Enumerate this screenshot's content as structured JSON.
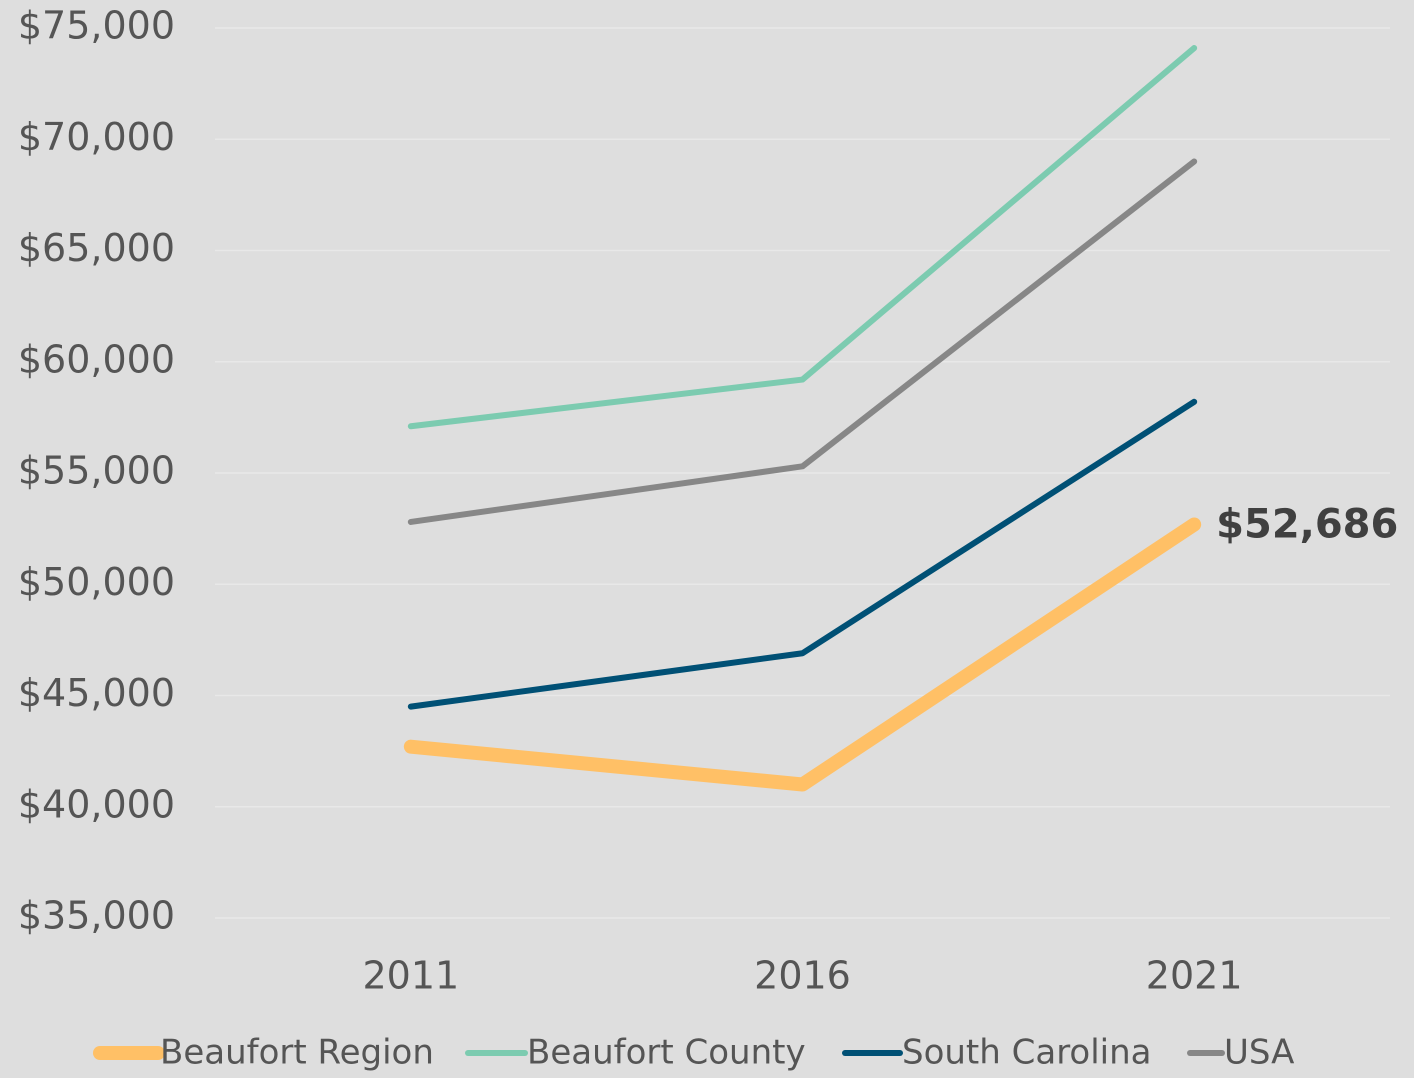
{
  "chart_data": {
    "type": "line",
    "categories": [
      "2011",
      "2016",
      "2021"
    ],
    "series": [
      {
        "name": "Beaufort Region",
        "color": "#ffc066",
        "values": [
          42700,
          41000,
          52686
        ],
        "value_labels": [
          null,
          null,
          "$52,686"
        ]
      },
      {
        "name": "Beaufort County",
        "color": "#7ccbb0",
        "values": [
          57100,
          59200,
          74100
        ]
      },
      {
        "name": "South Carolina",
        "color": "#005075",
        "values": [
          44500,
          46900,
          58200
        ]
      },
      {
        "name": "USA",
        "color": "#878787",
        "values": [
          52800,
          55300,
          69000
        ]
      }
    ],
    "ylim": [
      35000,
      75000
    ],
    "yticks": [
      {
        "value": 35000,
        "label": "$35,000"
      },
      {
        "value": 40000,
        "label": "$40,000"
      },
      {
        "value": 45000,
        "label": "$45,000"
      },
      {
        "value": 50000,
        "label": "$50,000"
      },
      {
        "value": 55000,
        "label": "$55,000"
      },
      {
        "value": 60000,
        "label": "$60,000"
      },
      {
        "value": 65000,
        "label": "$65,000"
      },
      {
        "value": 70000,
        "label": "$70,000"
      },
      {
        "value": 75000,
        "label": "$75,000"
      }
    ],
    "grid": true,
    "legend": "bottom"
  }
}
